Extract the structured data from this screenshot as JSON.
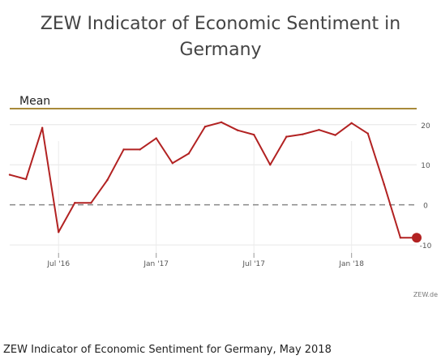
{
  "chart_data": {
    "type": "line",
    "title_lines": [
      "ZEW Indicator of Economic Sentiment in",
      "Germany"
    ],
    "caption": "ZEW Indicator of Economic Sentiment for Germany, May 2018",
    "source": "ZEW.de",
    "mean": {
      "label": "Mean",
      "value": 24,
      "color": "#a88a3a"
    },
    "zero_line": {
      "value": 0,
      "style": "dashed",
      "color": "#888888"
    },
    "ylim": [
      -12,
      24
    ],
    "yticks": [
      20,
      10,
      0,
      -10
    ],
    "xticks": [
      {
        "label": "Jul '16",
        "x": "2016-07"
      },
      {
        "label": "Jan '17",
        "x": "2017-01"
      },
      {
        "label": "Jul '17",
        "x": "2017-07"
      },
      {
        "label": "Jan '18",
        "x": "2018-01"
      }
    ],
    "grid": true,
    "line_color": "#b22222",
    "series": [
      {
        "x": [
          "2016-04",
          "2016-05",
          "2016-06",
          "2016-07",
          "2016-08",
          "2016-09",
          "2016-10",
          "2016-11",
          "2016-12",
          "2017-01",
          "2017-02",
          "2017-03",
          "2017-04",
          "2017-05",
          "2017-06",
          "2017-07",
          "2017-08",
          "2017-09",
          "2017-10",
          "2017-11",
          "2017-12",
          "2018-01",
          "2018-02",
          "2018-03",
          "2018-04",
          "2018-05"
        ],
        "values": [
          7.5,
          6.4,
          19.2,
          -6.8,
          0.5,
          0.5,
          6.2,
          13.8,
          13.8,
          16.6,
          10.4,
          12.8,
          19.5,
          20.6,
          18.6,
          17.5,
          10.0,
          17.0,
          17.6,
          18.7,
          17.4,
          20.4,
          17.8,
          5.1,
          -8.2,
          -8.2
        ]
      }
    ]
  }
}
